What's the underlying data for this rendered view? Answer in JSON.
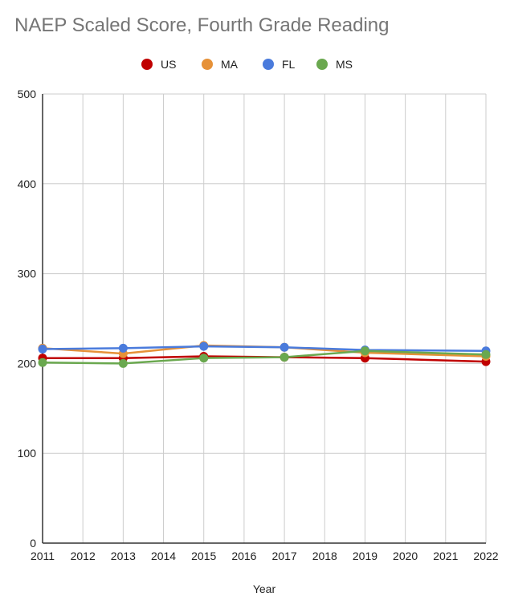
{
  "chart_data": {
    "type": "line",
    "title": "NAEP Scaled Score, Fourth Grade Reading",
    "xlabel": "Year",
    "ylabel": "",
    "x": [
      2011,
      2013,
      2015,
      2017,
      2019,
      2022
    ],
    "x_ticks": [
      "2011",
      "2012",
      "2013",
      "2014",
      "2015",
      "2016",
      "2017",
      "2018",
      "2019",
      "2020",
      "2021",
      "2022"
    ],
    "xlim": [
      2011,
      2022
    ],
    "ylim": [
      0,
      500
    ],
    "y_ticks": [
      "0",
      "100",
      "200",
      "300",
      "400",
      "500"
    ],
    "grid": true,
    "legend_position": "top",
    "series": [
      {
        "name": "US",
        "color": "#c00000",
        "values": [
          206,
          206,
          208,
          207,
          206,
          202
        ]
      },
      {
        "name": "MA",
        "color": "#e69138",
        "values": [
          217,
          211,
          220,
          218,
          212,
          208
        ]
      },
      {
        "name": "FL",
        "color": "#4a7bdc",
        "values": [
          216,
          217,
          219,
          218,
          215,
          214
        ]
      },
      {
        "name": "MS",
        "color": "#6aa84f",
        "values": [
          201,
          200,
          206,
          207,
          214,
          210
        ]
      }
    ]
  }
}
